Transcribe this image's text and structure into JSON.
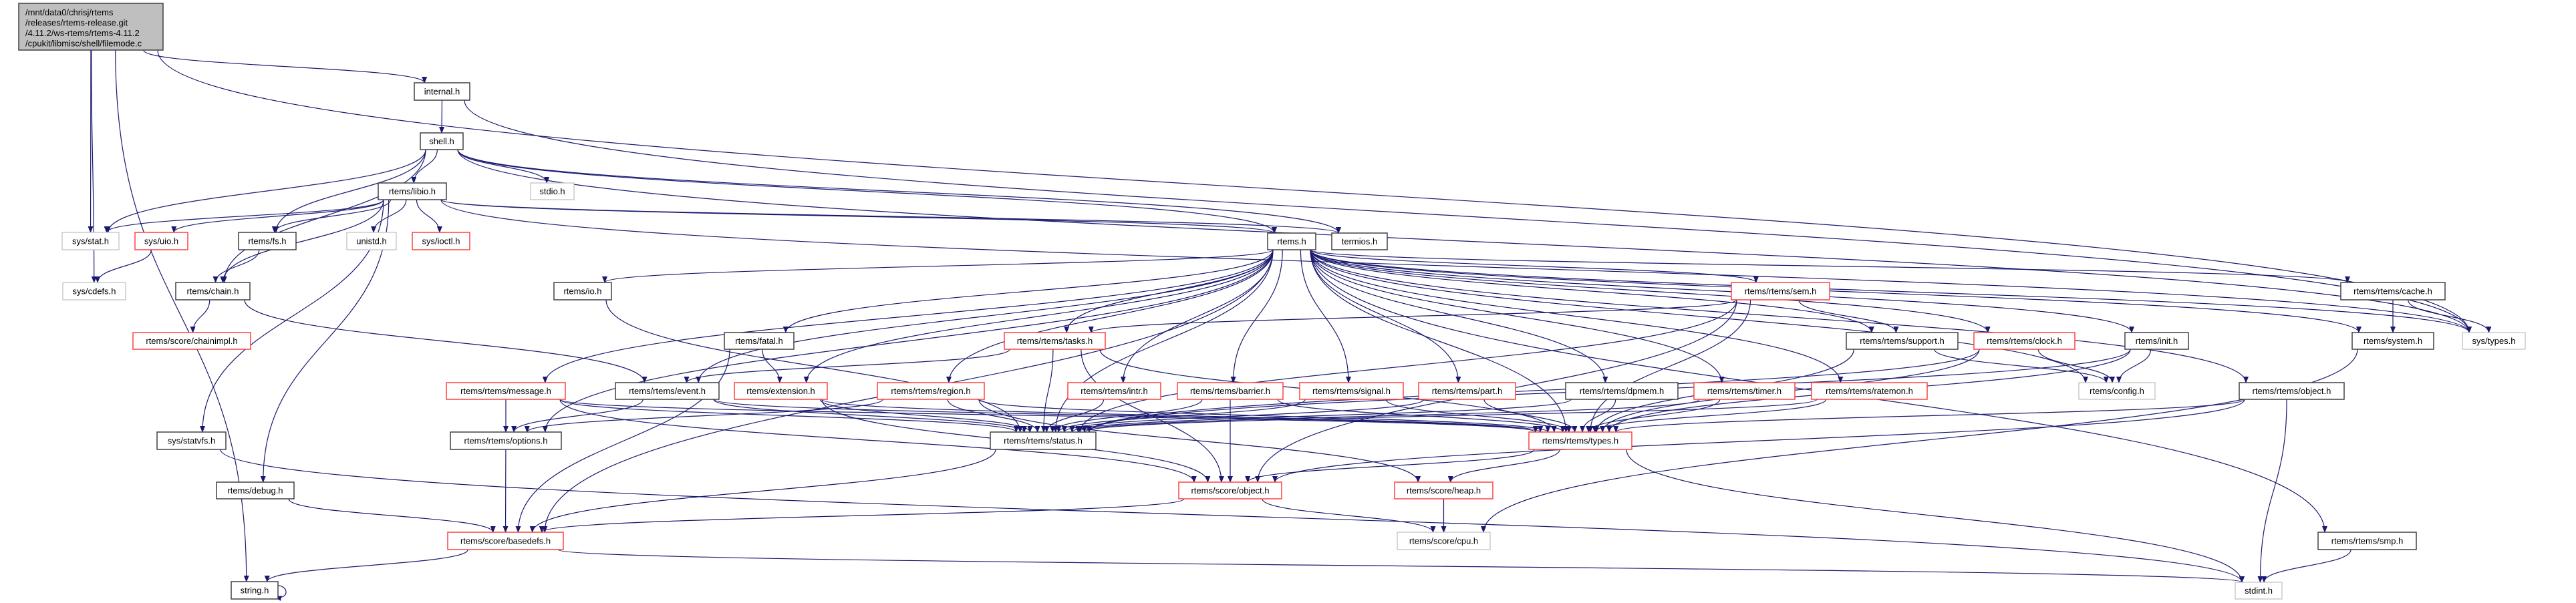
{
  "graph": {
    "styles": {
      "root": {
        "fill": "#bfbfbf",
        "stroke": "#404040"
      },
      "documented": {
        "fill": "#ffffff",
        "stroke": "#404040"
      },
      "undocumented": {
        "fill": "#ffffff",
        "stroke": "#ff4040"
      },
      "external": {
        "fill": "#ffffff",
        "stroke": "#bfbfbf"
      },
      "edge_color": "#191970"
    },
    "nodes": [
      {
        "id": "main",
        "style": "root",
        "lines": [
          "/mnt/data0/chrisj/rtems",
          "/releases/rtems-release.git",
          "/4.11.2/ws-rtems/rtems-4.11.2",
          "/cpukit/libmisc/shell/filemode.c"
        ]
      },
      {
        "id": "internal",
        "style": "documented",
        "label": "internal.h"
      },
      {
        "id": "shell",
        "style": "documented",
        "label": "shell.h"
      },
      {
        "id": "stdio",
        "style": "external",
        "label": "stdio.h"
      },
      {
        "id": "libio",
        "style": "documented",
        "label": "rtems/libio.h"
      },
      {
        "id": "termios",
        "style": "documented",
        "label": "termios.h"
      },
      {
        "id": "rtems",
        "style": "documented",
        "label": "rtems.h"
      },
      {
        "id": "sysstat",
        "style": "external",
        "label": "sys/stat.h"
      },
      {
        "id": "sysuio",
        "style": "undocumented",
        "label": "sys/uio.h"
      },
      {
        "id": "fs",
        "style": "documented",
        "label": "rtems/fs.h"
      },
      {
        "id": "unistd",
        "style": "external",
        "label": "unistd.h"
      },
      {
        "id": "ioctl",
        "style": "undocumented",
        "label": "sys/ioctl.h"
      },
      {
        "id": "cdefs",
        "style": "external",
        "label": "sys/cdefs.h"
      },
      {
        "id": "chain",
        "style": "documented",
        "label": "rtems/chain.h"
      },
      {
        "id": "io",
        "style": "documented",
        "label": "rtems/io.h"
      },
      {
        "id": "sem",
        "style": "undocumented",
        "label": "rtems/rtems/sem.h"
      },
      {
        "id": "cache",
        "style": "documented",
        "label": "rtems/rtems/cache.h"
      },
      {
        "id": "systypes",
        "style": "external",
        "label": "sys/types.h"
      },
      {
        "id": "chainimpl",
        "style": "undocumented",
        "label": "rtems/score/chainimpl.h"
      },
      {
        "id": "fatal",
        "style": "documented",
        "label": "rtems/fatal.h"
      },
      {
        "id": "tasks",
        "style": "undocumented",
        "label": "rtems/rtems/tasks.h"
      },
      {
        "id": "support",
        "style": "documented",
        "label": "rtems/rtems/support.h"
      },
      {
        "id": "clock",
        "style": "undocumented",
        "label": "rtems/rtems/clock.h"
      },
      {
        "id": "init",
        "style": "documented",
        "label": "rtems/init.h"
      },
      {
        "id": "system",
        "style": "documented",
        "label": "rtems/system.h"
      },
      {
        "id": "message",
        "style": "undocumented",
        "label": "rtems/rtems/message.h"
      },
      {
        "id": "event",
        "style": "documented",
        "label": "rtems/rtems/event.h"
      },
      {
        "id": "extension",
        "style": "undocumented",
        "label": "rtems/extension.h"
      },
      {
        "id": "region",
        "style": "undocumented",
        "label": "rtems/rtems/region.h"
      },
      {
        "id": "intr",
        "style": "undocumented",
        "label": "rtems/rtems/intr.h"
      },
      {
        "id": "barrier",
        "style": "undocumented",
        "label": "rtems/rtems/barrier.h"
      },
      {
        "id": "signal",
        "style": "undocumented",
        "label": "rtems/rtems/signal.h"
      },
      {
        "id": "part",
        "style": "undocumented",
        "label": "rtems/rtems/part.h"
      },
      {
        "id": "dpmem",
        "style": "documented",
        "label": "rtems/rtems/dpmem.h"
      },
      {
        "id": "timer",
        "style": "undocumented",
        "label": "rtems/rtems/timer.h"
      },
      {
        "id": "ratemon",
        "style": "undocumented",
        "label": "rtems/rtems/ratemon.h"
      },
      {
        "id": "config",
        "style": "external",
        "label": "rtems/config.h"
      },
      {
        "id": "robject",
        "style": "documented",
        "label": "rtems/rtems/object.h"
      },
      {
        "id": "statvfs",
        "style": "documented",
        "label": "sys/statvfs.h"
      },
      {
        "id": "options",
        "style": "documented",
        "label": "rtems/rtems/options.h"
      },
      {
        "id": "status",
        "style": "documented",
        "label": "rtems/rtems/status.h"
      },
      {
        "id": "types",
        "style": "undocumented",
        "label": "rtems/rtems/types.h"
      },
      {
        "id": "debug",
        "style": "documented",
        "label": "rtems/debug.h"
      },
      {
        "id": "sobject",
        "style": "undocumented",
        "label": "rtems/score/object.h"
      },
      {
        "id": "heap",
        "style": "undocumented",
        "label": "rtems/score/heap.h"
      },
      {
        "id": "basedefs",
        "style": "undocumented",
        "label": "rtems/score/basedefs.h"
      },
      {
        "id": "cpu",
        "style": "external",
        "label": "rtems/score/cpu.h"
      },
      {
        "id": "smp",
        "style": "documented",
        "label": "rtems/rtems/smp.h"
      },
      {
        "id": "string",
        "style": "documented",
        "label": "string.h"
      },
      {
        "id": "stdint",
        "style": "external",
        "label": "stdint.h"
      }
    ],
    "edges": [
      [
        "main",
        "internal"
      ],
      [
        "main",
        "sysstat"
      ],
      [
        "main",
        "cdefs"
      ],
      [
        "main",
        "string"
      ],
      [
        "main",
        "systypes"
      ],
      [
        "internal",
        "shell"
      ],
      [
        "internal",
        "systypes"
      ],
      [
        "shell",
        "stdio"
      ],
      [
        "shell",
        "libio"
      ],
      [
        "shell",
        "sysstat"
      ],
      [
        "shell",
        "fs"
      ],
      [
        "shell",
        "chain"
      ],
      [
        "shell",
        "rtems"
      ],
      [
        "shell",
        "termios"
      ],
      [
        "shell",
        "systypes"
      ],
      [
        "libio",
        "sysstat"
      ],
      [
        "libio",
        "sysuio"
      ],
      [
        "libio",
        "fs"
      ],
      [
        "libio",
        "unistd"
      ],
      [
        "libio",
        "ioctl"
      ],
      [
        "libio",
        "chain"
      ],
      [
        "libio",
        "statvfs"
      ],
      [
        "libio",
        "debug"
      ],
      [
        "libio",
        "rtems"
      ],
      [
        "libio",
        "termios"
      ],
      [
        "libio",
        "systypes"
      ],
      [
        "sysuio",
        "cdefs"
      ],
      [
        "fs",
        "chain"
      ],
      [
        "chain",
        "chainimpl"
      ],
      [
        "chain",
        "event"
      ],
      [
        "statvfs",
        "stdint"
      ],
      [
        "debug",
        "basedefs"
      ],
      [
        "basedefs",
        "string"
      ],
      [
        "basedefs",
        "stdint"
      ],
      [
        "string",
        "string"
      ],
      [
        "rtems",
        "io"
      ],
      [
        "rtems",
        "fatal"
      ],
      [
        "rtems",
        "event"
      ],
      [
        "rtems",
        "extension"
      ],
      [
        "rtems",
        "message"
      ],
      [
        "rtems",
        "options"
      ],
      [
        "rtems",
        "tasks"
      ],
      [
        "rtems",
        "intr"
      ],
      [
        "rtems",
        "barrier"
      ],
      [
        "rtems",
        "signal"
      ],
      [
        "rtems",
        "part"
      ],
      [
        "rtems",
        "region"
      ],
      [
        "rtems",
        "dpmem"
      ],
      [
        "rtems",
        "timer"
      ],
      [
        "rtems",
        "ratemon"
      ],
      [
        "rtems",
        "sem"
      ],
      [
        "rtems",
        "support"
      ],
      [
        "rtems",
        "clock"
      ],
      [
        "rtems",
        "config"
      ],
      [
        "rtems",
        "init"
      ],
      [
        "rtems",
        "status"
      ],
      [
        "rtems",
        "types"
      ],
      [
        "rtems",
        "robject"
      ],
      [
        "rtems",
        "cache"
      ],
      [
        "rtems",
        "system"
      ],
      [
        "rtems",
        "systypes"
      ],
      [
        "rtems",
        "smp"
      ],
      [
        "rtems",
        "basedefs"
      ],
      [
        "io",
        "status"
      ],
      [
        "fatal",
        "extension"
      ],
      [
        "fatal",
        "basedefs"
      ],
      [
        "tasks",
        "event"
      ],
      [
        "tasks",
        "status"
      ],
      [
        "tasks",
        "types"
      ],
      [
        "tasks",
        "sobject"
      ],
      [
        "message",
        "options"
      ],
      [
        "message",
        "status"
      ],
      [
        "message",
        "types"
      ],
      [
        "message",
        "sobject"
      ],
      [
        "event",
        "options"
      ],
      [
        "event",
        "status"
      ],
      [
        "event",
        "types"
      ],
      [
        "extension",
        "status"
      ],
      [
        "extension",
        "types"
      ],
      [
        "extension",
        "sobject"
      ],
      [
        "region",
        "options"
      ],
      [
        "region",
        "status"
      ],
      [
        "region",
        "types"
      ],
      [
        "region",
        "heap"
      ],
      [
        "intr",
        "status"
      ],
      [
        "barrier",
        "status"
      ],
      [
        "barrier",
        "types"
      ],
      [
        "barrier",
        "sobject"
      ],
      [
        "signal",
        "status"
      ],
      [
        "signal",
        "types"
      ],
      [
        "part",
        "status"
      ],
      [
        "part",
        "types"
      ],
      [
        "dpmem",
        "status"
      ],
      [
        "dpmem",
        "types"
      ],
      [
        "timer",
        "status"
      ],
      [
        "timer",
        "types"
      ],
      [
        "ratemon",
        "status"
      ],
      [
        "ratemon",
        "types"
      ],
      [
        "sem",
        "tasks"
      ],
      [
        "sem",
        "support"
      ],
      [
        "sem",
        "types"
      ],
      [
        "sem",
        "status"
      ],
      [
        "sem",
        "sobject"
      ],
      [
        "support",
        "types"
      ],
      [
        "support",
        "config"
      ],
      [
        "clock",
        "config"
      ],
      [
        "clock",
        "types"
      ],
      [
        "clock",
        "status"
      ],
      [
        "init",
        "config"
      ],
      [
        "init",
        "types"
      ],
      [
        "init",
        "status"
      ],
      [
        "robject",
        "types"
      ],
      [
        "robject",
        "stdint"
      ],
      [
        "robject",
        "sobject"
      ],
      [
        "system",
        "cpu"
      ],
      [
        "cache",
        "system"
      ],
      [
        "cache",
        "systypes"
      ],
      [
        "smp",
        "stdint"
      ],
      [
        "types",
        "sobject"
      ],
      [
        "types",
        "heap"
      ],
      [
        "types",
        "stdint"
      ],
      [
        "status",
        "basedefs"
      ],
      [
        "options",
        "basedefs"
      ],
      [
        "sobject",
        "cpu"
      ],
      [
        "sobject",
        "basedefs"
      ],
      [
        "heap",
        "cpu"
      ]
    ]
  }
}
